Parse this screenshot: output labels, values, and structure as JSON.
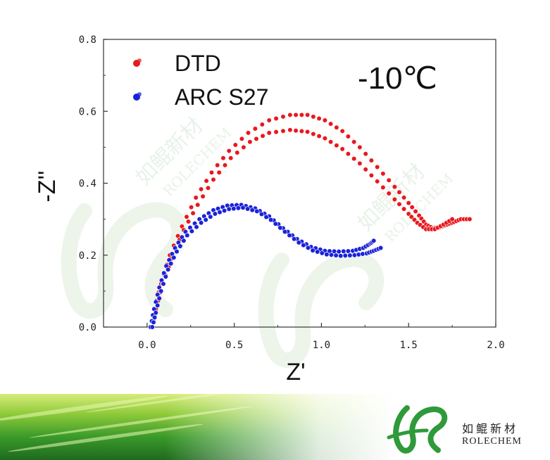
{
  "chart_data": {
    "type": "scatter",
    "xlabel": "Z'",
    "ylabel": "-Z''",
    "xlim": [
      -0.25,
      2.0
    ],
    "ylim": [
      0.0,
      0.8
    ],
    "xticks": [
      "0.0",
      "0.5",
      "1.0",
      "1.5",
      "2.0"
    ],
    "yticks": [
      "0.0",
      "0.2",
      "0.4",
      "0.6",
      "0.8"
    ],
    "annotation": "-10℃",
    "grid": false,
    "legend_position": "top-left",
    "series": [
      {
        "name": "DTD",
        "color": "#e8191e",
        "marker": "filled-circle",
        "x": [
          0.02,
          0.04,
          0.08,
          0.13,
          0.2,
          0.28,
          0.37,
          0.47,
          0.58,
          0.7,
          0.82,
          0.92,
          1.02,
          1.12,
          1.22,
          1.32,
          1.42,
          1.5,
          1.56,
          1.6,
          1.64,
          1.68,
          1.72,
          1.76,
          1.8,
          1.85
        ],
        "y": [
          0.0,
          0.05,
          0.12,
          0.2,
          0.28,
          0.36,
          0.43,
          0.49,
          0.54,
          0.575,
          0.59,
          0.59,
          0.575,
          0.545,
          0.5,
          0.445,
          0.39,
          0.345,
          0.31,
          0.285,
          0.275,
          0.278,
          0.285,
          0.292,
          0.3,
          0.3
        ]
      },
      {
        "name": "DTD",
        "color": "#e8191e",
        "marker": "filled-circle",
        "x": [
          0.03,
          0.05,
          0.09,
          0.14,
          0.21,
          0.29,
          0.38,
          0.48,
          0.59,
          0.7,
          0.82,
          0.92,
          1.02,
          1.12,
          1.22,
          1.32,
          1.42,
          1.5,
          1.55,
          1.6,
          1.65,
          1.7,
          1.75
        ],
        "y": [
          0.0,
          0.05,
          0.12,
          0.19,
          0.27,
          0.34,
          0.41,
          0.47,
          0.515,
          0.54,
          0.548,
          0.543,
          0.525,
          0.495,
          0.455,
          0.405,
          0.355,
          0.315,
          0.29,
          0.272,
          0.272,
          0.285,
          0.3
        ]
      },
      {
        "name": "ARC S27",
        "color": "#1a22d8",
        "marker": "filled-circle",
        "x": [
          0.02,
          0.04,
          0.07,
          0.11,
          0.16,
          0.22,
          0.3,
          0.38,
          0.46,
          0.54,
          0.62,
          0.7,
          0.78,
          0.86,
          0.94,
          1.02,
          1.1,
          1.18,
          1.24,
          1.28,
          1.3
        ],
        "y": [
          0.0,
          0.05,
          0.11,
          0.17,
          0.22,
          0.265,
          0.3,
          0.325,
          0.338,
          0.34,
          0.33,
          0.308,
          0.275,
          0.245,
          0.223,
          0.212,
          0.21,
          0.212,
          0.22,
          0.232,
          0.24
        ]
      },
      {
        "name": "ARC S27",
        "color": "#1a22d8",
        "marker": "filled-circle",
        "x": [
          0.03,
          0.05,
          0.08,
          0.12,
          0.17,
          0.23,
          0.31,
          0.39,
          0.47,
          0.55,
          0.63,
          0.71,
          0.79,
          0.87,
          0.95,
          1.03,
          1.11,
          1.19,
          1.26,
          1.3,
          1.34
        ],
        "y": [
          0.0,
          0.04,
          0.1,
          0.16,
          0.21,
          0.255,
          0.29,
          0.315,
          0.328,
          0.332,
          0.322,
          0.298,
          0.265,
          0.235,
          0.213,
          0.202,
          0.198,
          0.2,
          0.205,
          0.212,
          0.22
        ]
      }
    ]
  },
  "logo": {
    "chinese_name": "如鲲新材",
    "english_name": "ROLECHEM"
  },
  "watermark": {
    "chinese_text": "如鲲新材",
    "english_text": "ROLECHEM"
  }
}
